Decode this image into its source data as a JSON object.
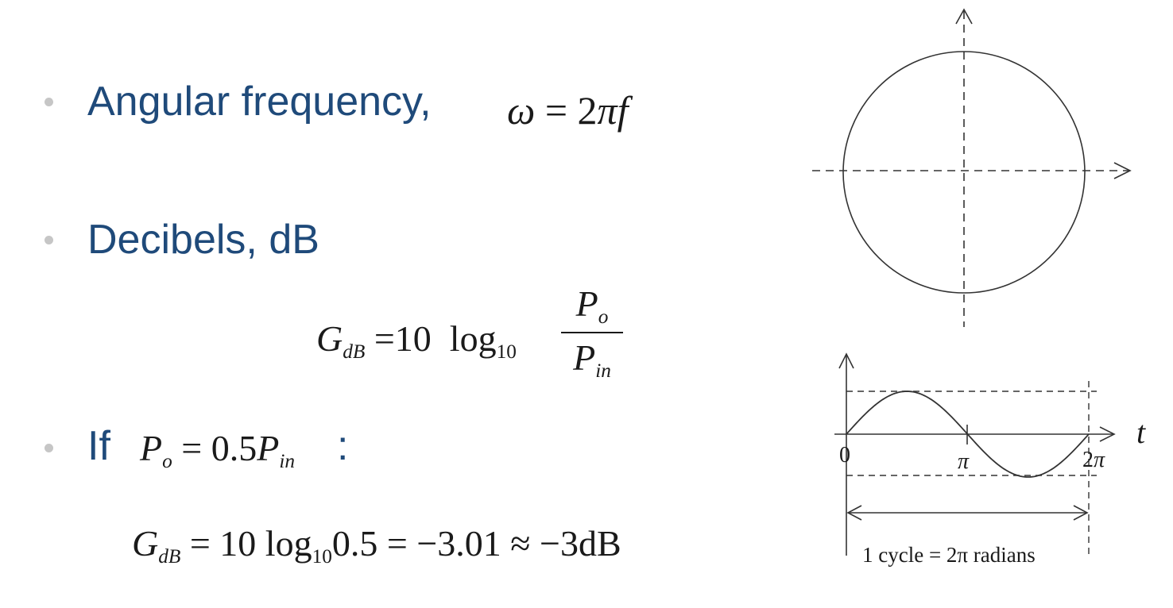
{
  "bullets": {
    "angular": {
      "label": "Angular frequency,",
      "omega": "ω",
      "eq": "=",
      "two": "2",
      "pi": "π",
      "f": "f"
    },
    "decibels": {
      "label": "Decibels, dB"
    },
    "if": {
      "label": "If",
      "colon": ":"
    }
  },
  "formula_db": {
    "G": "G",
    "sub": "dB",
    "eq": "=",
    "ten": "10",
    "log": "log",
    "log_sub": "10",
    "num": "P",
    "num_sub": "o",
    "den": "P",
    "den_sub": "in"
  },
  "formula_if": {
    "P": "P",
    "sub_o": "o",
    "rhs": "= 0.5",
    "P2": "P",
    "sub_in": "in"
  },
  "formula_result": {
    "G": "G",
    "sub": "dB",
    "rhs1": "= 10 log",
    "log_sub": "10",
    "rhs2": "0.5 = −3.01 ≈ −3dB"
  },
  "wave_diagram": {
    "label_zero": "0",
    "label_pi": "π",
    "label_2pi_num": "2",
    "label_2pi_pi": "π",
    "label_t": "t",
    "caption": "1 cycle = 2π radians"
  }
}
